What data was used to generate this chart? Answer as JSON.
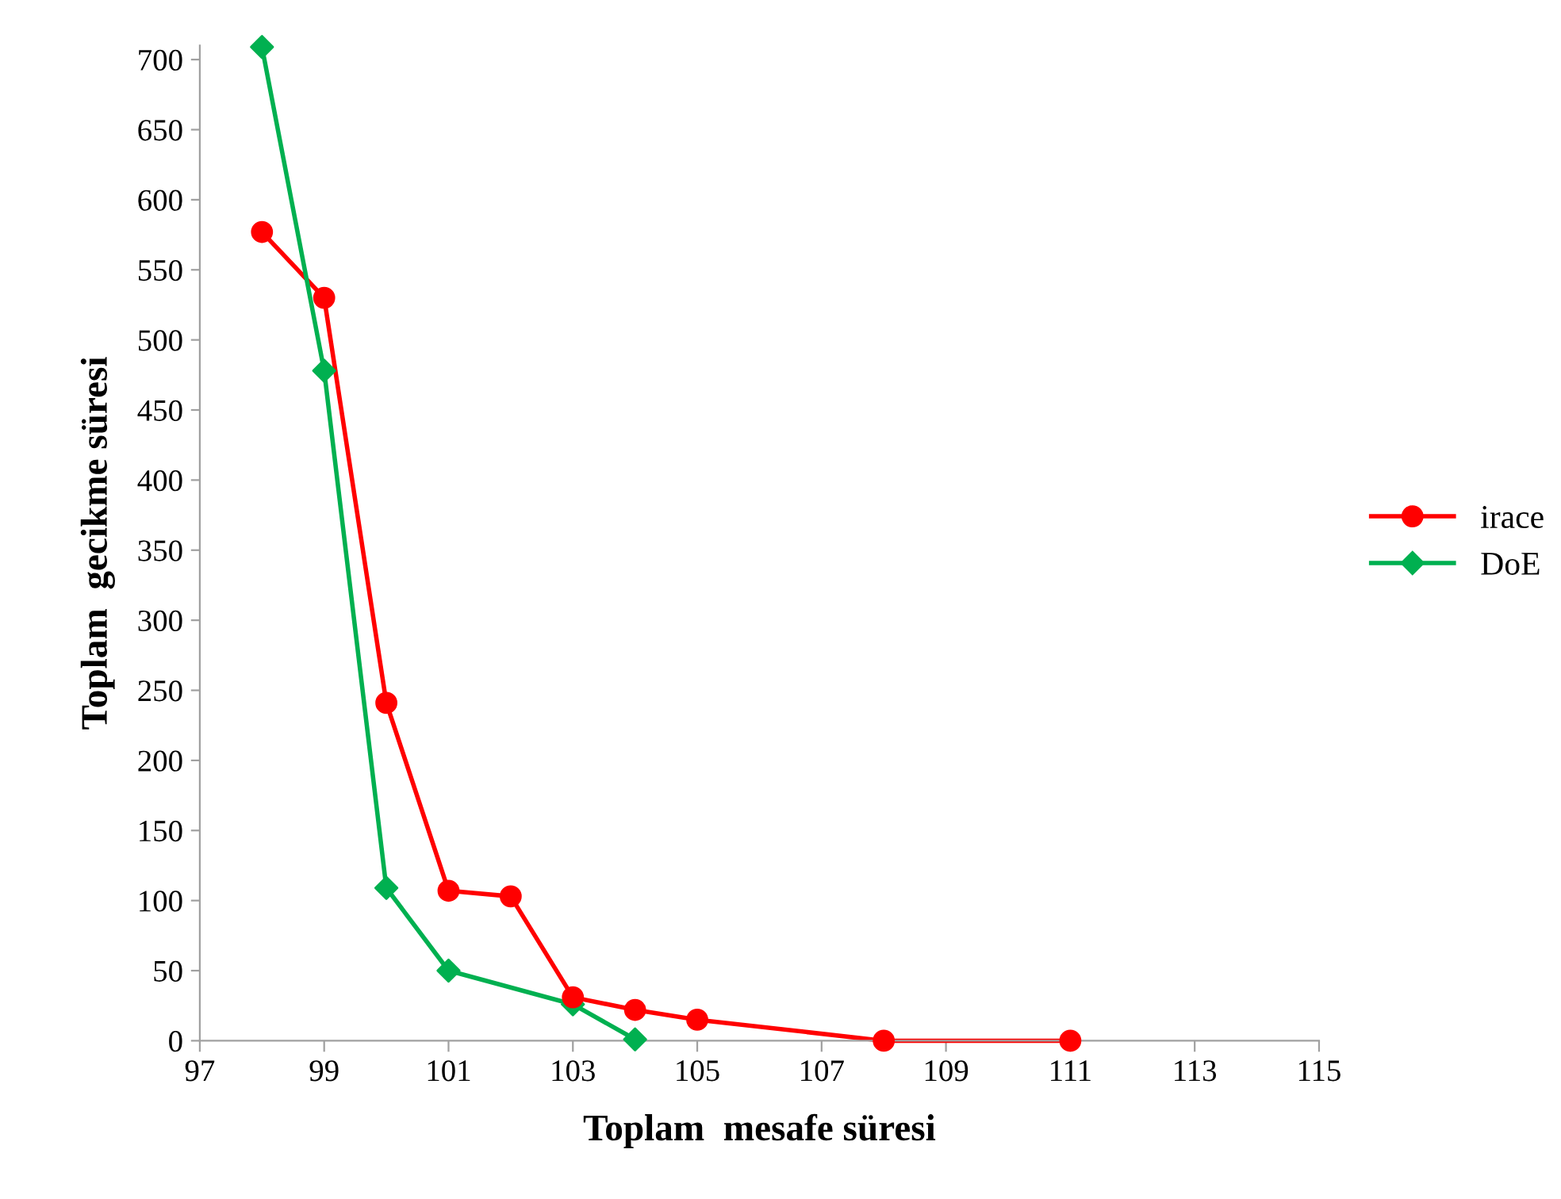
{
  "chart_data": {
    "type": "line",
    "xlabel": "Toplam  mesafe süresi",
    "ylabel": "Toplam  gecikme süresi",
    "xlim": [
      97,
      115
    ],
    "xticks": [
      97,
      99,
      101,
      103,
      105,
      107,
      109,
      111,
      113,
      115
    ],
    "ylim": [
      0,
      710
    ],
    "yticks": [
      0,
      50,
      100,
      150,
      200,
      250,
      300,
      350,
      400,
      450,
      500,
      550,
      600,
      650,
      700
    ],
    "grid": false,
    "legend": "right",
    "series": [
      {
        "name": "irace",
        "color": "#ff0000",
        "marker": "circle",
        "x": [
          98,
          99,
          100,
          101,
          102,
          103,
          104,
          105,
          108,
          111
        ],
        "values": [
          577,
          530,
          241,
          107,
          103,
          31,
          22,
          15,
          0,
          0
        ]
      },
      {
        "name": "DoE",
        "color": "#00b050",
        "marker": "diamond",
        "x": [
          98,
          99,
          100,
          101,
          103,
          104
        ],
        "values": [
          709,
          478,
          109,
          50,
          26,
          1
        ]
      }
    ]
  }
}
